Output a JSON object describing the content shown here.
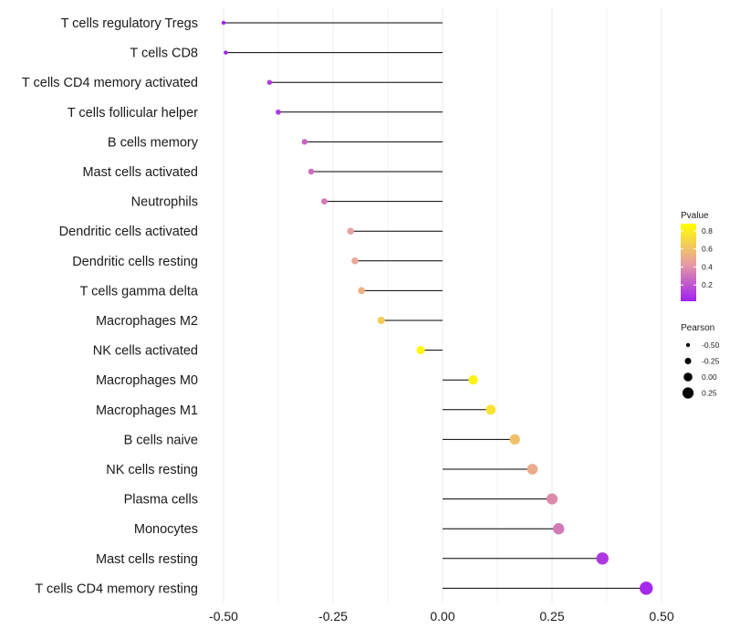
{
  "chart_data": {
    "type": "lollipop",
    "title": "",
    "xlabel": "",
    "ylabel": "",
    "xlim": [
      -0.52,
      0.54
    ],
    "grid": true,
    "x_ticks": [
      -0.5,
      -0.25,
      0.0,
      0.25,
      0.5
    ],
    "x_tick_labels": [
      "-0.50",
      "-0.25",
      "0.00",
      "0.25",
      "0.50"
    ],
    "baseline": 0.0,
    "categories": [
      "T cells regulatory  Tregs",
      "T cells CD8",
      "T cells CD4 memory activated",
      "T cells follicular helper",
      "B cells memory",
      "Mast cells activated",
      "Neutrophils",
      "Dendritic cells activated",
      "Dendritic cells resting",
      "T cells gamma delta",
      "Macrophages M2",
      "NK cells activated",
      "Macrophages M0",
      "Macrophages M1",
      "B cells naive",
      "NK cells resting",
      "Plasma cells",
      "Monocytes",
      "Mast cells resting",
      "T cells CD4 memory resting"
    ],
    "pearson": [
      -0.5,
      -0.495,
      -0.395,
      -0.375,
      -0.315,
      -0.3,
      -0.27,
      -0.21,
      -0.2,
      -0.185,
      -0.14,
      -0.05,
      0.07,
      0.11,
      0.165,
      0.205,
      0.25,
      0.265,
      0.365,
      0.465
    ],
    "pvalue": [
      0.02,
      0.03,
      0.12,
      0.1,
      0.25,
      0.28,
      0.32,
      0.45,
      0.48,
      0.52,
      0.65,
      0.85,
      0.82,
      0.75,
      0.6,
      0.5,
      0.38,
      0.32,
      0.1,
      0.05
    ],
    "legend_color": {
      "title": "Pvalue",
      "position": "right",
      "range": [
        0.02,
        0.88
      ],
      "ticks": [
        0.8,
        0.6,
        0.4,
        0.2
      ],
      "tick_labels": [
        "0.8",
        "0.6",
        "0.4",
        "0.2"
      ],
      "low_color": "#a020f0",
      "mid_color": "#e8a0a0",
      "high_color": "#ffff00"
    },
    "legend_size": {
      "title": "Pearson",
      "position": "right",
      "values": [
        -0.5,
        -0.25,
        0.0,
        0.25
      ],
      "labels": [
        "-0.50",
        "-0.25",
        "0.00",
        "0.25"
      ],
      "marker_color": "#000000"
    },
    "colors": {
      "stem": "#000000",
      "grid": "#ebebeb",
      "text": "#1a1a1a"
    }
  }
}
